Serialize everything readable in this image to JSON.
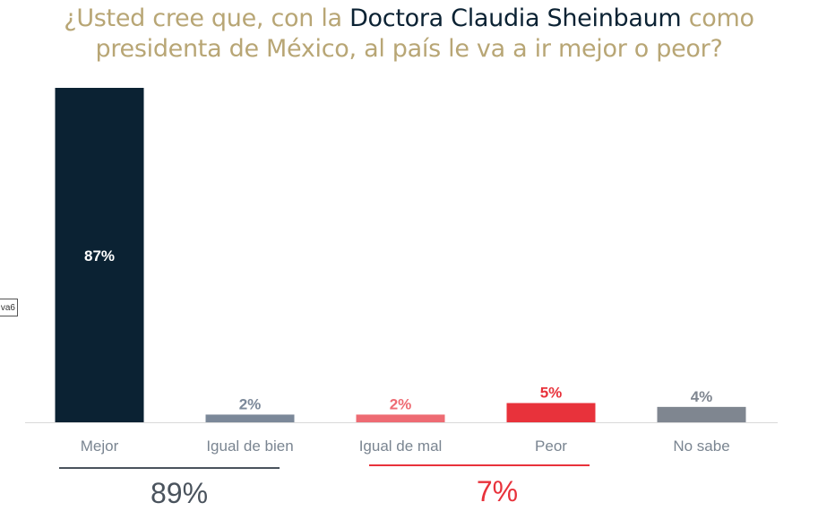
{
  "title": {
    "part1": "¿Usted cree que, con la ",
    "highlight": "Doctora Claudia Sheinbaum",
    "part2": " como presidenta de México, al país le va a ir mejor o peor?"
  },
  "side_tag": "va6",
  "colors": {
    "title": "#b8a675",
    "title_highlight": "#0b2233",
    "mejor": "#0b2233",
    "igual_bien": "#7b8899",
    "igual_mal": "#ee6b73",
    "peor": "#e8323b",
    "no_sabe": "#7f8690",
    "positive_line": "#4a535d",
    "negative_line": "#e8323b",
    "axis": "#d9d9d9"
  },
  "chart_data": {
    "type": "bar",
    "title": "¿Usted cree que, con la Doctora Claudia Sheinbaum como presidenta de México, al país le va a ir mejor o peor?",
    "categories": [
      "Mejor",
      "Igual de bien",
      "Igual de mal",
      "Peor",
      "No sabe"
    ],
    "values": [
      87,
      2,
      2,
      5,
      4
    ],
    "value_labels": [
      "87%",
      "2%",
      "2%",
      "5%",
      "4%"
    ],
    "ylim": [
      0,
      87
    ],
    "grid": false,
    "groups": [
      {
        "label": "89%",
        "categories": [
          "Mejor",
          "Igual de bien"
        ],
        "value": 89
      },
      {
        "label": "7%",
        "categories": [
          "Igual de mal",
          "Peor"
        ],
        "value": 7
      }
    ]
  }
}
